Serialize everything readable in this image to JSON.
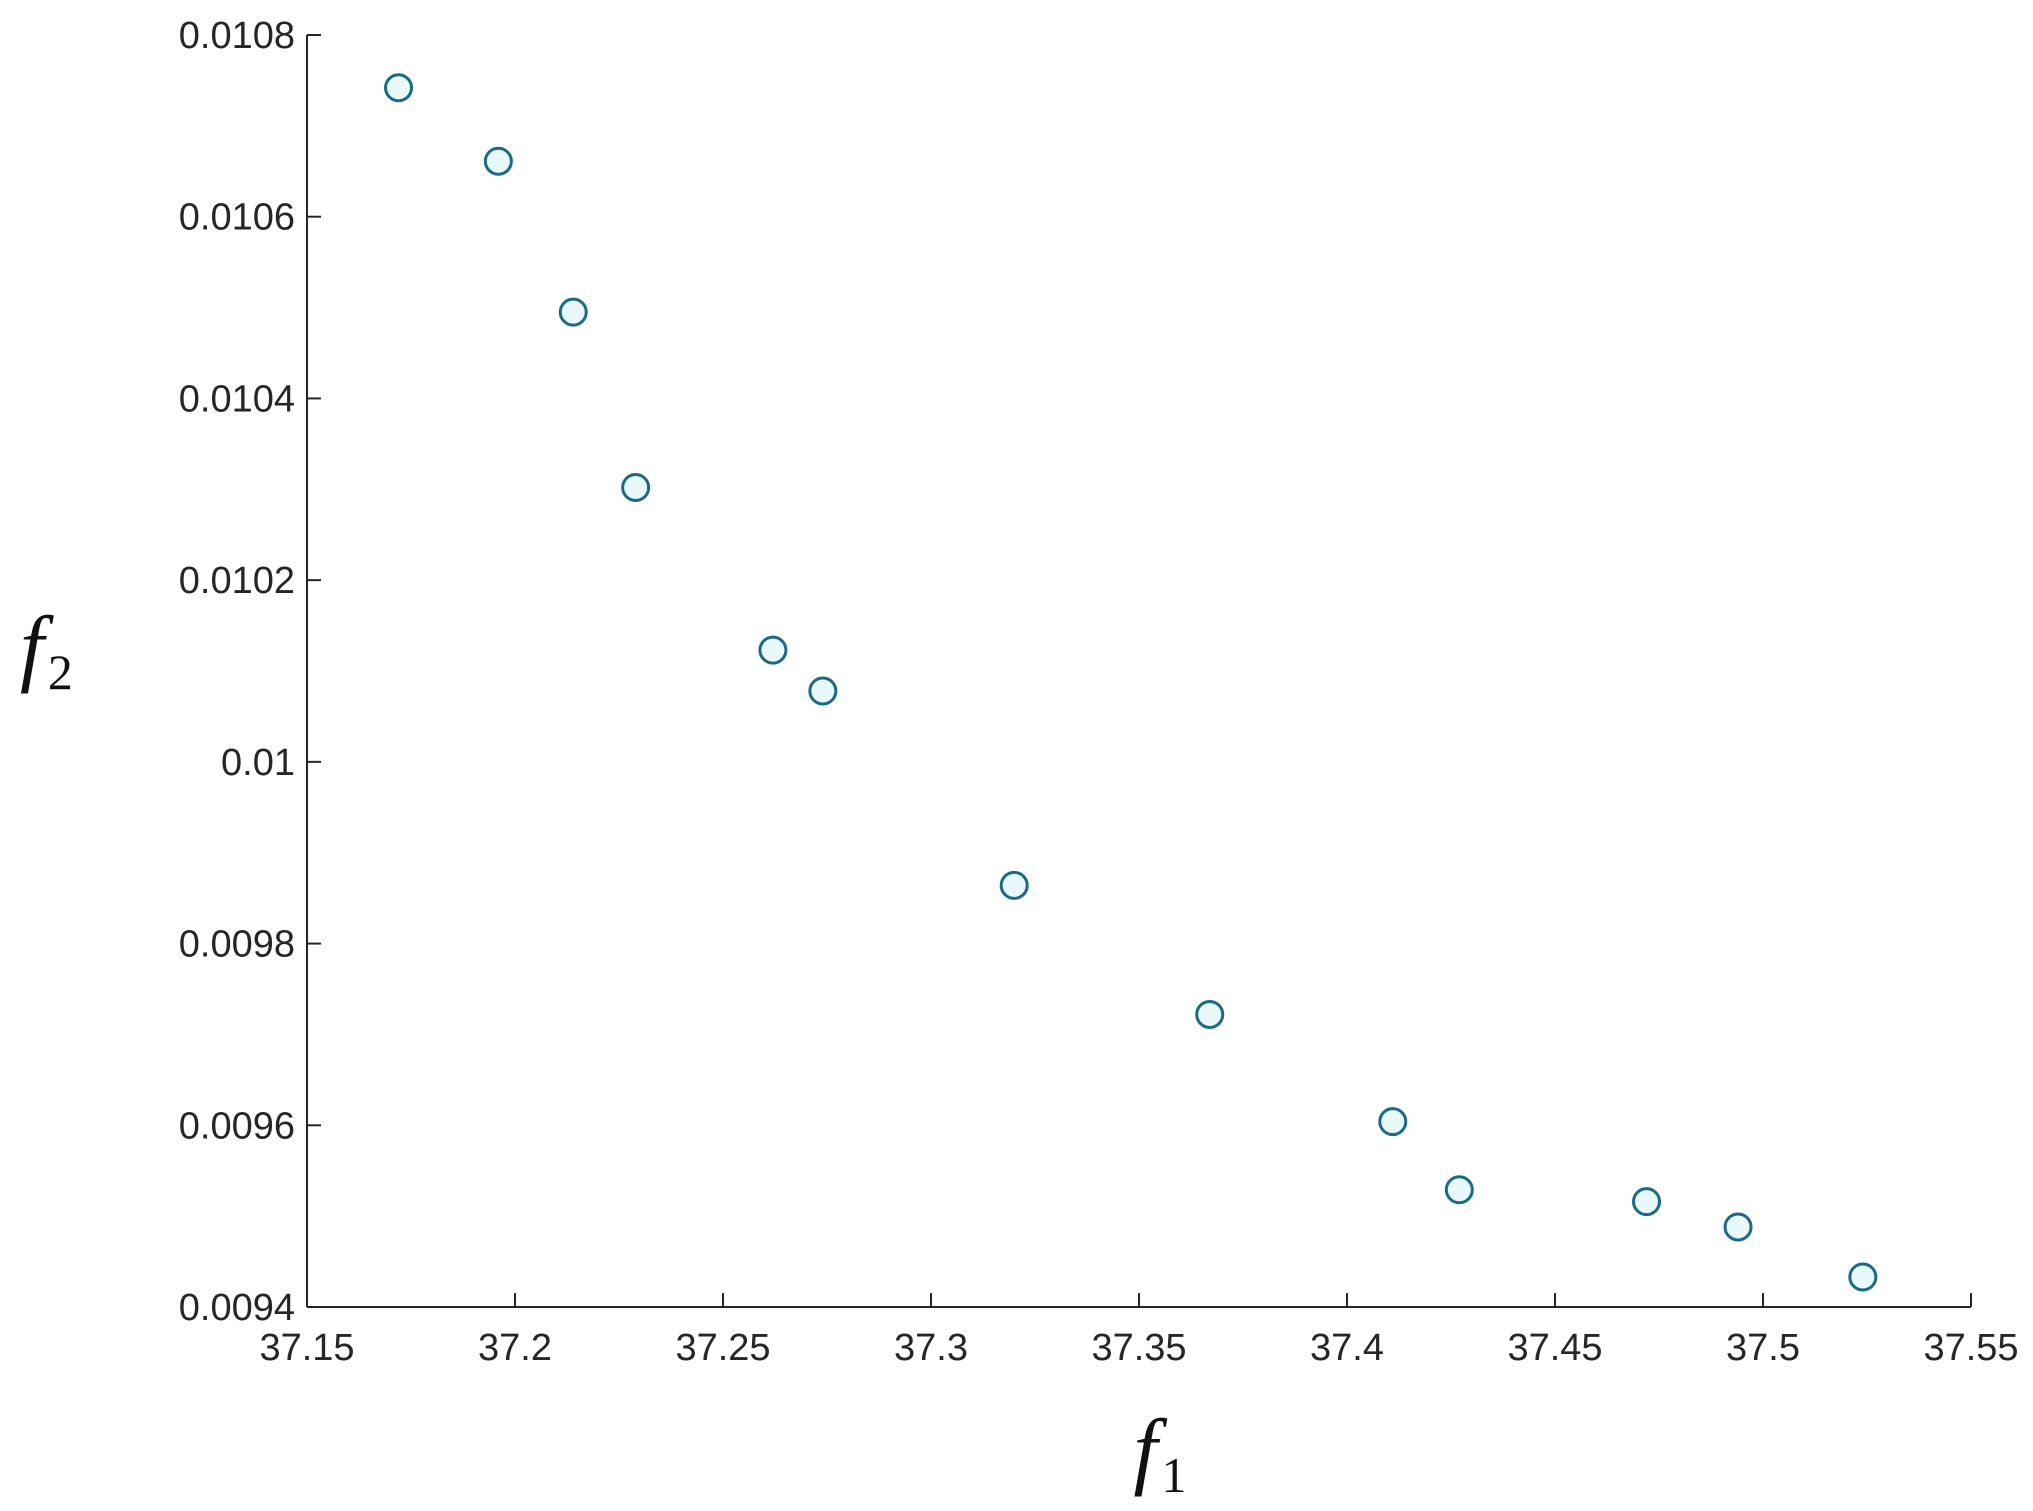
{
  "chart_data": {
    "type": "scatter",
    "title": "",
    "xlabel": "f",
    "xlabel_sub": "1",
    "ylabel": "f",
    "ylabel_sub": "2",
    "xlim": [
      37.15,
      37.55
    ],
    "ylim": [
      0.0094,
      0.0108
    ],
    "xticks": [
      37.15,
      37.2,
      37.25,
      37.3,
      37.35,
      37.4,
      37.45,
      37.5,
      37.55
    ],
    "xtick_labels": [
      "37.15",
      "37.2",
      "37.25",
      "37.3",
      "37.35",
      "37.4",
      "37.45",
      "37.5",
      "37.55"
    ],
    "yticks": [
      0.0094,
      0.0096,
      0.0098,
      0.01,
      0.0102,
      0.0104,
      0.0106,
      0.0108
    ],
    "ytick_labels": [
      "0.0094",
      "0.0096",
      "0.0098",
      "0.01",
      "0.0102",
      "0.0104",
      "0.0106",
      "0.0108"
    ],
    "grid": false,
    "marker": "circle",
    "marker_edge_color": "#1b6a86",
    "marker_face_color": "#e9f8fb",
    "series": [
      {
        "x": [
          37.172,
          37.196,
          37.214,
          37.229,
          37.262,
          37.274,
          37.32,
          37.367,
          37.411,
          37.427,
          37.472,
          37.494,
          37.524
        ],
        "y": [
          0.010742,
          0.010661,
          0.010495,
          0.010302,
          0.010123,
          0.010078,
          0.009864,
          0.009722,
          0.009604,
          0.009529,
          0.009516,
          0.009488,
          0.009433
        ]
      }
    ]
  }
}
